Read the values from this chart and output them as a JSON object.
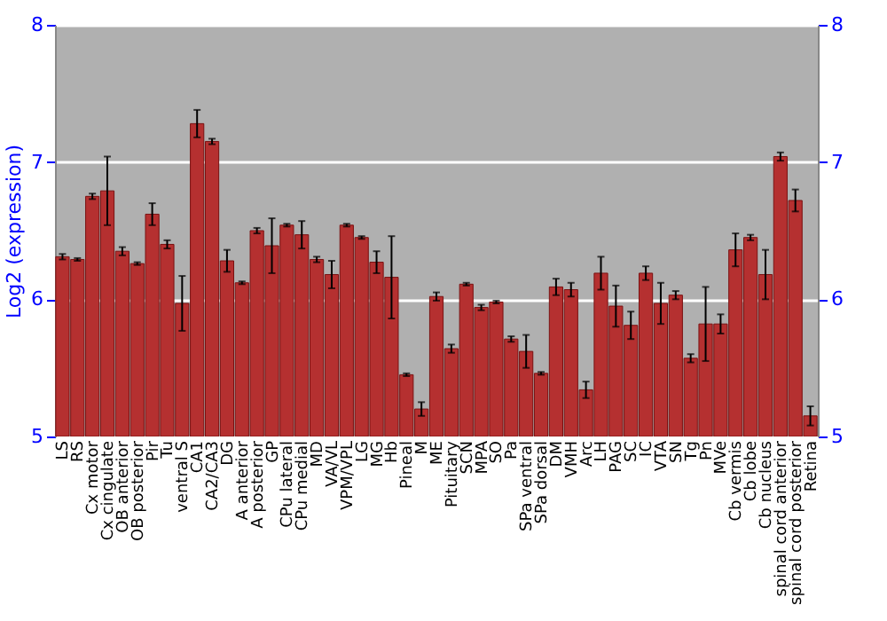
{
  "chart_data": {
    "type": "bar",
    "ylabel": "Log2 (expression)",
    "categories": [
      "LS",
      "RS",
      "Cx motor",
      "Cx cingulate",
      "OB anterior",
      "OB posterior",
      "Pir",
      "Tu",
      "ventral S",
      "CA1",
      "CA2/CA3",
      "DG",
      "A anterior",
      "A posterior",
      "GP",
      "CPu lateral",
      "CPu medial",
      "MD",
      "VA/VL",
      "VPM/VPL",
      "LG",
      "MG",
      "Hb",
      "Pineal",
      "M",
      "ME",
      "Pituitary",
      "SCN",
      "MPA",
      "SO",
      "Pa",
      "SPa ventral",
      "SPa dorsal",
      "DM",
      "VMH",
      "Arc",
      "LH",
      "PAG",
      "SC",
      "IC",
      "VTA",
      "SN",
      "Tg",
      "Pn",
      "MVe",
      "Cb vermis",
      "Cb lobe",
      "Cb nucleus",
      "spinal cord anterior",
      "spinal cord posterior",
      "Retina"
    ],
    "values": [
      6.31,
      6.29,
      6.75,
      6.79,
      6.35,
      6.26,
      6.62,
      6.4,
      5.97,
      7.28,
      7.15,
      6.28,
      6.12,
      6.5,
      6.39,
      6.54,
      6.47,
      6.29,
      6.18,
      6.54,
      6.45,
      6.27,
      6.16,
      5.45,
      5.2,
      6.02,
      5.64,
      6.11,
      5.94,
      5.98,
      5.71,
      5.62,
      5.46,
      6.09,
      6.07,
      5.34,
      6.19,
      5.95,
      5.81,
      6.19,
      5.97,
      6.03,
      5.57,
      5.82,
      5.82,
      6.36,
      6.45,
      6.18,
      7.04,
      6.72,
      5.15
    ],
    "errors": [
      0.02,
      0.01,
      0.02,
      0.25,
      0.03,
      0.01,
      0.08,
      0.03,
      0.2,
      0.1,
      0.02,
      0.08,
      0.01,
      0.02,
      0.2,
      0.01,
      0.1,
      0.02,
      0.1,
      0.01,
      0.01,
      0.08,
      0.3,
      0.01,
      0.05,
      0.03,
      0.03,
      0.01,
      0.02,
      0.01,
      0.02,
      0.12,
      0.01,
      0.06,
      0.05,
      0.06,
      0.12,
      0.15,
      0.1,
      0.05,
      0.15,
      0.03,
      0.03,
      0.27,
      0.07,
      0.12,
      0.02,
      0.18,
      0.03,
      0.08,
      0.07
    ],
    "color": "#b53030",
    "ylim": [
      5,
      8
    ],
    "yticks": [
      5,
      6,
      7,
      8
    ],
    "y2lim": [
      5,
      8
    ],
    "y2ticks": [
      5,
      6,
      7,
      8
    ],
    "grid": "y"
  }
}
